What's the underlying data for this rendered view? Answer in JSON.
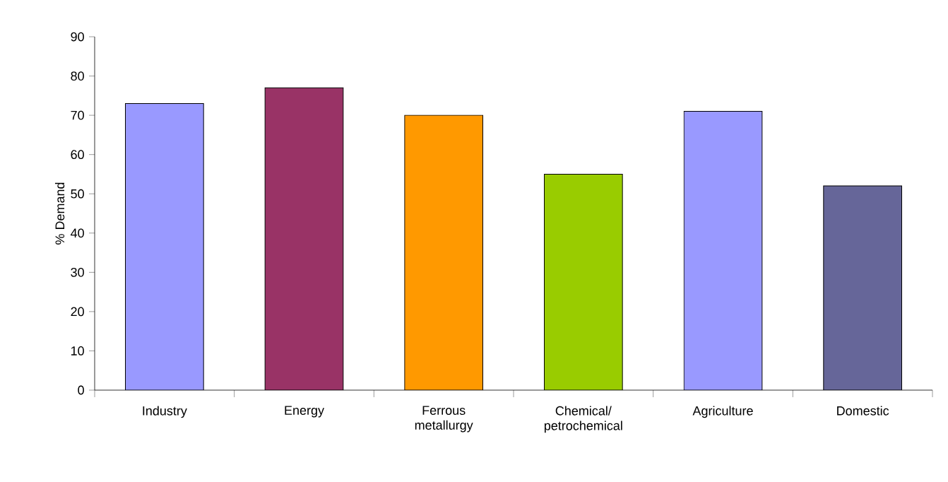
{
  "chart_data": {
    "type": "bar",
    "ylabel": "% Demand",
    "categories": [
      "Industry",
      "Energy",
      "Ferrous metallurgy",
      "Chemical/ petrochemical",
      "Agriculture",
      "Domestic"
    ],
    "values": [
      73,
      77,
      70,
      55,
      71,
      52
    ],
    "colors": [
      "#9999ff",
      "#993366",
      "#ff9900",
      "#99cc00",
      "#9999ff",
      "#666699"
    ],
    "ylim": [
      0,
      90
    ],
    "yticks": [
      0,
      10,
      20,
      30,
      40,
      50,
      60,
      70,
      80,
      90
    ]
  }
}
